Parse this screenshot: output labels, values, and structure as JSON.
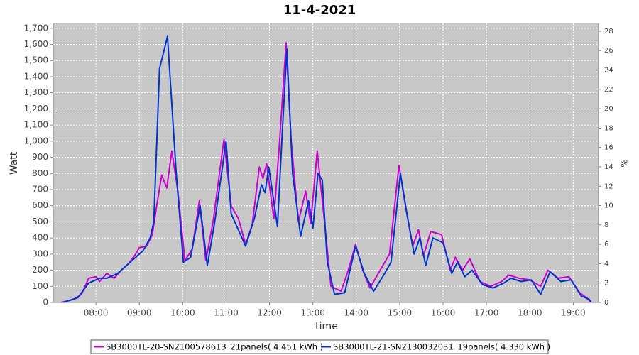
{
  "chart_data": {
    "type": "line",
    "title": "11-4-2021",
    "xlabel": "time",
    "ylabel": "Watt",
    "y2label": "%",
    "xlim": [
      "07:01",
      "19:35"
    ],
    "xticks": [
      "08:00",
      "09:00",
      "10:00",
      "11:00",
      "12:00",
      "13:00",
      "14:00",
      "15:00",
      "16:00",
      "17:00",
      "18:00",
      "19:00"
    ],
    "ylim": [
      0,
      1730
    ],
    "yticks": [
      0,
      100,
      200,
      300,
      400,
      500,
      600,
      700,
      800,
      900,
      {
        "value": 1000,
        "label": "1,000"
      },
      {
        "value": 1100,
        "label": "1,100"
      },
      {
        "value": 1200,
        "label": "1,200"
      },
      {
        "value": 1300,
        "label": "1,300"
      },
      {
        "value": 1400,
        "label": "1,400"
      },
      {
        "value": 1500,
        "label": "1,500"
      },
      {
        "value": 1600,
        "label": "1,600"
      },
      {
        "value": 1700,
        "label": "1,700"
      }
    ],
    "y2lim": [
      0,
      28.8
    ],
    "y2ticks": [
      0,
      2,
      4,
      6,
      8,
      10,
      12,
      14,
      16,
      18,
      20,
      22,
      24,
      26,
      28
    ],
    "grid": true,
    "legend": "bottom",
    "series": [
      {
        "name": "SB3000TL-20-SN2100578613_21panels( 4.451 kWh )",
        "color": "#cc00cc",
        "x": [
          "07:12",
          "07:30",
          "07:40",
          "07:50",
          "08:00",
          "08:05",
          "08:15",
          "08:25",
          "08:35",
          "08:45",
          "08:55",
          "09:00",
          "09:10",
          "09:18",
          "09:24",
          "09:31",
          "09:38",
          "09:45",
          "09:53",
          "10:03",
          "10:13",
          "10:23",
          "10:32",
          "10:42",
          "10:57",
          "11:07",
          "11:17",
          "11:27",
          "11:36",
          "11:46",
          "11:51",
          "11:56",
          "12:06",
          "12:14",
          "12:23",
          "12:30",
          "12:40",
          "12:50",
          "12:57",
          "13:06",
          "13:15",
          "13:25",
          "13:39",
          "13:49",
          "13:59",
          "14:09",
          "14:19",
          "14:33",
          "14:46",
          "14:59",
          "15:08",
          "15:18",
          "15:26",
          "15:33",
          "15:43",
          "15:58",
          "16:10",
          "16:17",
          "16:27",
          "16:37",
          "16:51",
          "17:06",
          "17:21",
          "17:31",
          "17:45",
          "18:00",
          "18:15",
          "18:25",
          "18:39",
          "18:54",
          "19:09",
          "19:18",
          "19:25"
        ],
        "values": [
          0,
          20,
          50,
          150,
          160,
          130,
          180,
          150,
          200,
          240,
          300,
          340,
          350,
          420,
          600,
          790,
          710,
          940,
          700,
          260,
          330,
          630,
          260,
          500,
          1010,
          600,
          520,
          360,
          480,
          840,
          770,
          860,
          520,
          1000,
          1610,
          1000,
          500,
          690,
          490,
          940,
          550,
          100,
          70,
          200,
          360,
          200,
          90,
          200,
          300,
          850,
          600,
          350,
          450,
          290,
          440,
          420,
          200,
          280,
          200,
          270,
          130,
          100,
          130,
          170,
          150,
          140,
          100,
          200,
          150,
          160,
          60,
          30,
          0
        ]
      },
      {
        "name": "SB3000TL-21-SN2130032031_19panels( 4.330 kWh )",
        "color": "#0033cc",
        "x": [
          "07:15",
          "07:35",
          "07:50",
          "08:05",
          "08:15",
          "08:30",
          "08:50",
          "09:05",
          "09:15",
          "09:20",
          "09:28",
          "09:39",
          "09:51",
          "10:01",
          "10:11",
          "10:24",
          "10:34",
          "10:44",
          "11:00",
          "11:07",
          "11:20",
          "11:27",
          "11:39",
          "11:49",
          "11:54",
          "11:59",
          "12:11",
          "12:17",
          "12:24",
          "12:32",
          "12:43",
          "12:54",
          "13:00",
          "13:07",
          "13:13",
          "13:20",
          "13:30",
          "13:44",
          "13:59",
          "14:11",
          "14:24",
          "14:38",
          "14:48",
          "15:01",
          "15:10",
          "15:20",
          "15:28",
          "15:36",
          "15:46",
          "16:00",
          "16:12",
          "16:20",
          "16:30",
          "16:40",
          "16:55",
          "17:09",
          "17:24",
          "17:34",
          "17:48",
          "18:02",
          "18:15",
          "18:28",
          "18:43",
          "18:57",
          "19:11",
          "19:22",
          "19:25"
        ],
        "values": [
          0,
          30,
          120,
          150,
          150,
          180,
          260,
          320,
          400,
          500,
          1450,
          1650,
          800,
          250,
          280,
          600,
          230,
          490,
          1000,
          550,
          420,
          350,
          520,
          730,
          680,
          840,
          470,
          1000,
          1570,
          800,
          410,
          630,
          460,
          800,
          760,
          250,
          50,
          60,
          350,
          180,
          70,
          170,
          250,
          800,
          550,
          300,
          400,
          230,
          400,
          370,
          180,
          250,
          160,
          200,
          110,
          90,
          120,
          150,
          130,
          140,
          50,
          190,
          130,
          140,
          40,
          20,
          0
        ]
      }
    ]
  }
}
